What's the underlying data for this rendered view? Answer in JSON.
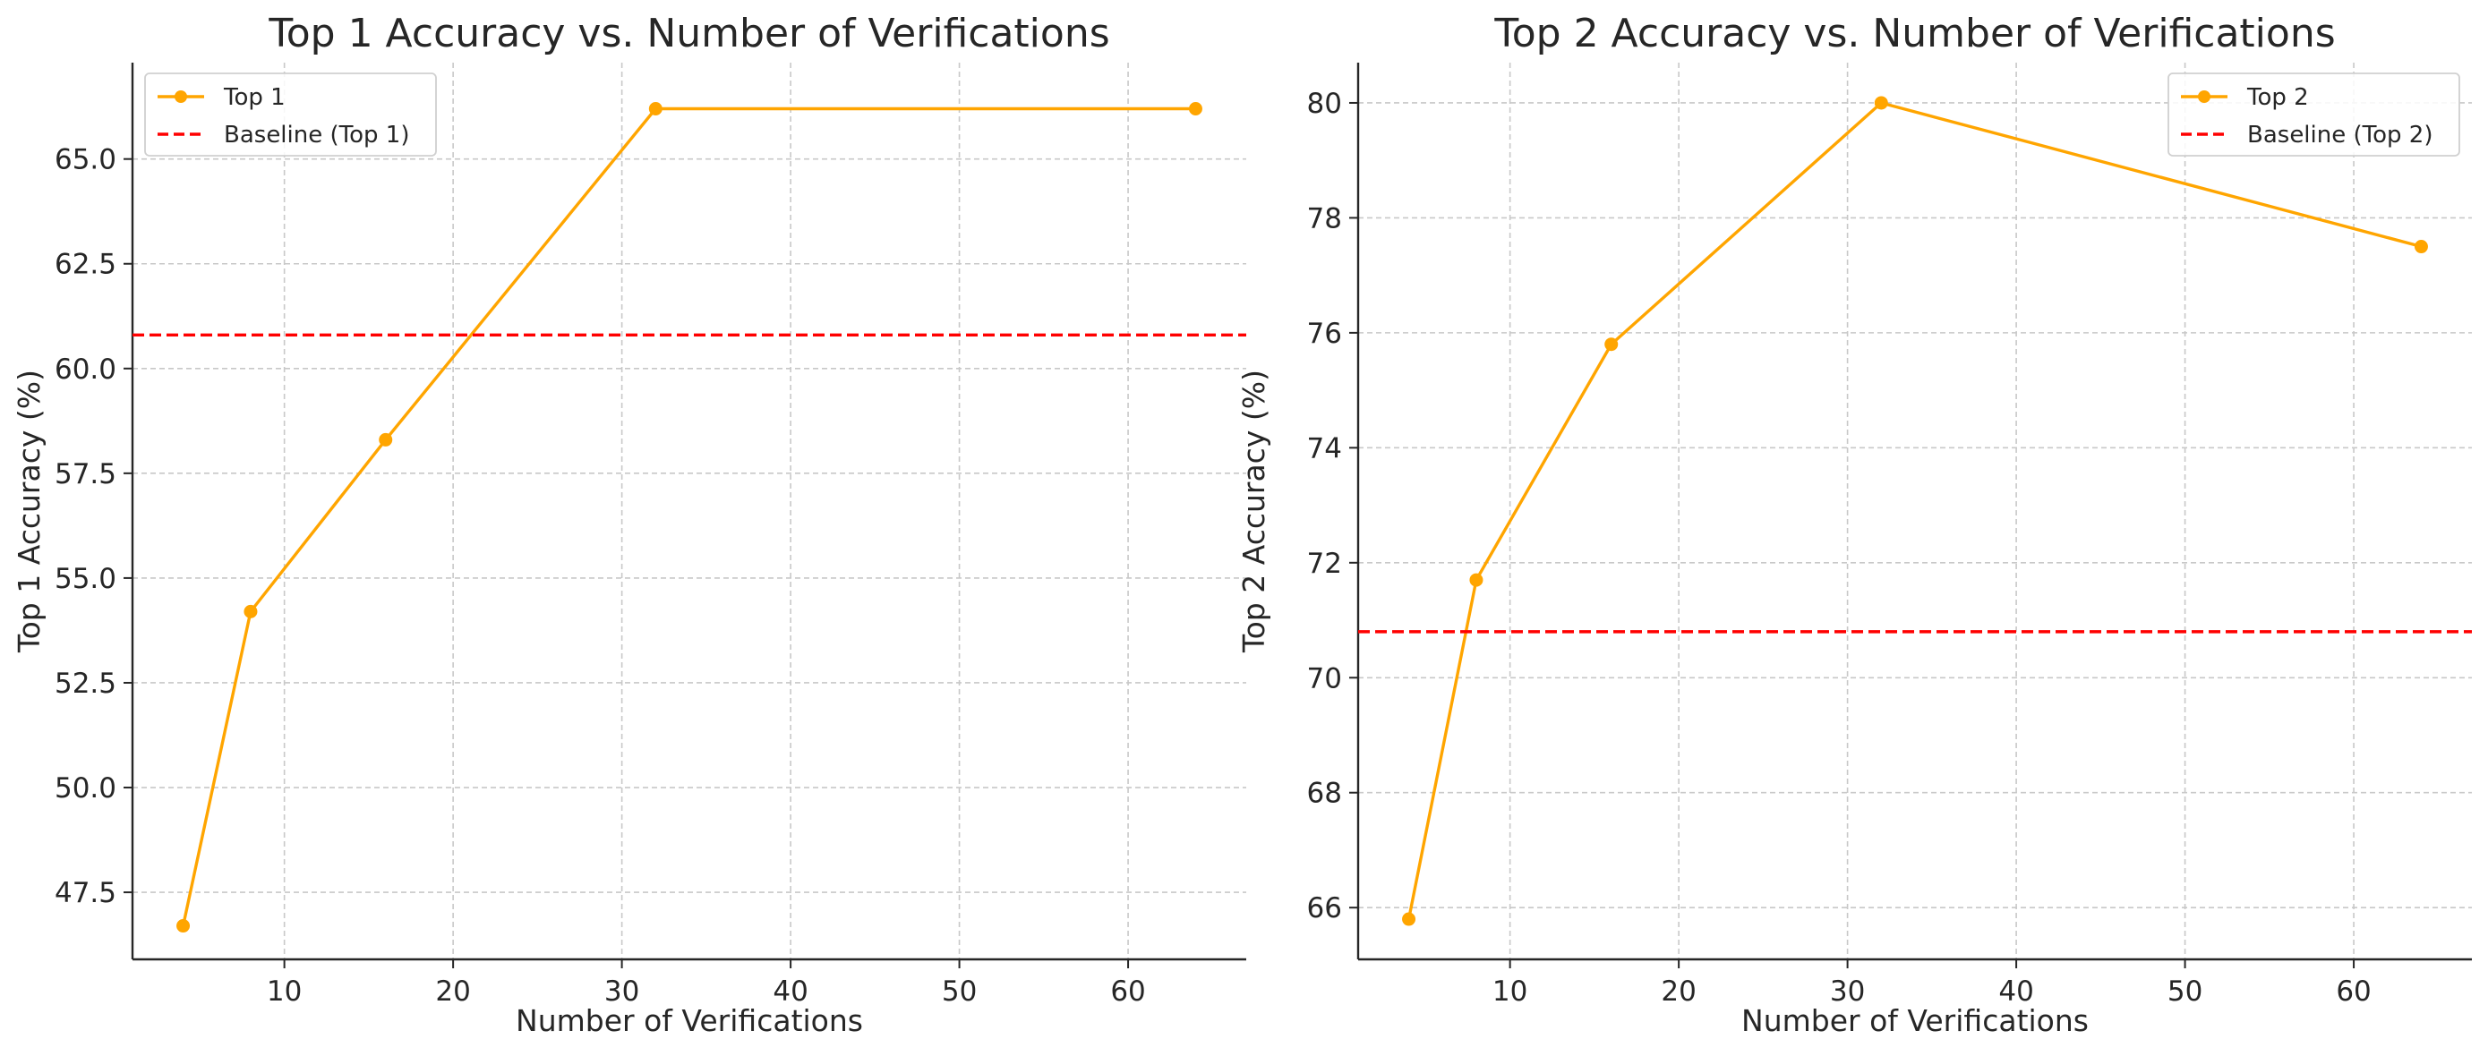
{
  "colors": {
    "series": "#FFA500",
    "baseline": "#FF0000",
    "grid": "#c8c8c8",
    "axis": "#262626",
    "text": "#262626"
  },
  "chart_data": [
    {
      "type": "line",
      "title": "Top 1 Accuracy vs. Number of Verifications",
      "xlabel": "Number of Verifications",
      "ylabel": "Top 1 Accuracy (%)",
      "xlim": [
        1.0,
        67.0
      ],
      "ylim": [
        45.9,
        67.3
      ],
      "xticks": [
        10,
        20,
        30,
        40,
        50,
        60
      ],
      "xtick_labels": [
        "10",
        "20",
        "30",
        "40",
        "50",
        "60"
      ],
      "yticks": [
        47.5,
        50.0,
        52.5,
        55.0,
        57.5,
        60.0,
        62.5,
        65.0
      ],
      "ytick_labels": [
        "47.5",
        "50.0",
        "52.5",
        "55.0",
        "57.5",
        "60.0",
        "62.5",
        "65.0"
      ],
      "grid": true,
      "legend_position": "top-left",
      "x": [
        4,
        8,
        16,
        32,
        64
      ],
      "series": [
        {
          "name": "Top 1",
          "values": [
            46.7,
            54.2,
            58.3,
            66.2,
            66.2
          ],
          "style": "solid-marker"
        },
        {
          "name": "Baseline (Top 1)",
          "hline": 60.8,
          "style": "dashed"
        }
      ]
    },
    {
      "type": "line",
      "title": "Top 2 Accuracy vs. Number of Verifications",
      "xlabel": "Number of Verifications",
      "ylabel": "Top 2 Accuracy (%)",
      "xlim": [
        1.0,
        67.0
      ],
      "ylim": [
        65.1,
        80.7
      ],
      "xticks": [
        10,
        20,
        30,
        40,
        50,
        60
      ],
      "xtick_labels": [
        "10",
        "20",
        "30",
        "40",
        "50",
        "60"
      ],
      "yticks": [
        66,
        68,
        70,
        72,
        74,
        76,
        78,
        80
      ],
      "ytick_labels": [
        "66",
        "68",
        "70",
        "72",
        "74",
        "76",
        "78",
        "80"
      ],
      "grid": true,
      "legend_position": "top-right",
      "x": [
        4,
        8,
        16,
        32,
        64
      ],
      "series": [
        {
          "name": "Top 2",
          "values": [
            65.8,
            71.7,
            75.8,
            80.0,
            77.5
          ],
          "style": "solid-marker"
        },
        {
          "name": "Baseline (Top 2)",
          "hline": 70.8,
          "style": "dashed"
        }
      ]
    }
  ]
}
